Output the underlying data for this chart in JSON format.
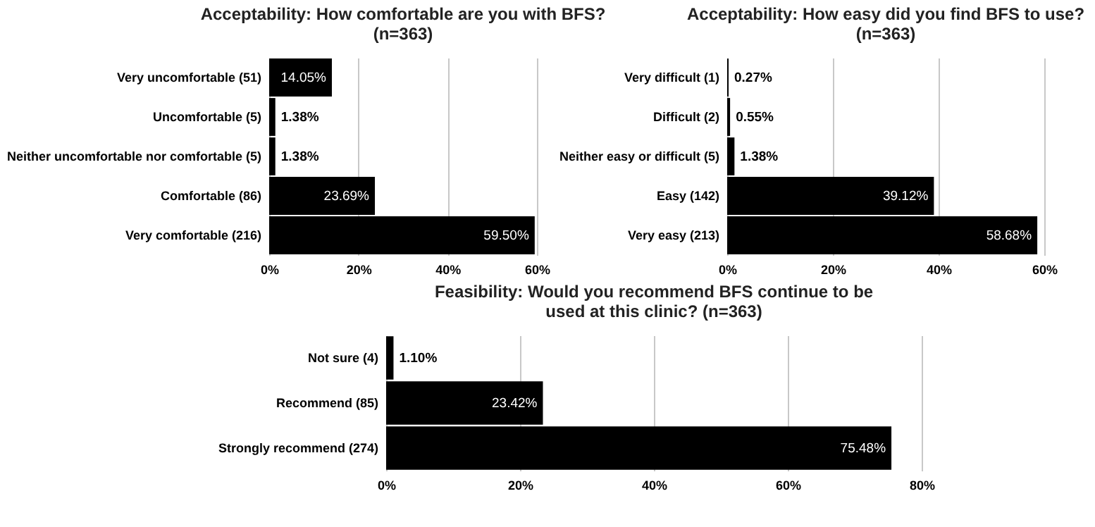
{
  "chart_data": [
    {
      "type": "bar",
      "orientation": "horizontal",
      "title": "Acceptability: How comfortable are you with BFS?\n(n=363)",
      "categories": [
        "Very uncomfortable (51)",
        "Uncomfortable (5)",
        "Neither uncomfortable nor comfortable (5)",
        "Comfortable (86)",
        "Very comfortable (216)"
      ],
      "values": [
        14.05,
        1.38,
        1.38,
        23.69,
        59.5
      ],
      "value_labels": [
        "14.05%",
        "1.38%",
        "1.38%",
        "23.69%",
        "59.50%"
      ],
      "color": "#000000",
      "xlim": [
        0,
        60
      ],
      "xticks": [
        {
          "value": 0,
          "label": "0%"
        },
        {
          "value": 20,
          "label": "20%"
        },
        {
          "value": 40,
          "label": "40%"
        },
        {
          "value": 60,
          "label": "60%"
        }
      ],
      "grid": "x"
    },
    {
      "type": "bar",
      "orientation": "horizontal",
      "title": "Acceptability: How easy did you find BFS to use?\n(n=363)",
      "categories": [
        "Very difficult (1)",
        "Difficult (2)",
        "Neither easy or difficult (5)",
        "Easy (142)",
        "Very easy (213)"
      ],
      "values": [
        0.27,
        0.55,
        1.38,
        39.12,
        58.68
      ],
      "value_labels": [
        "0.27%",
        "0.55%",
        "1.38%",
        "39.12%",
        "58.68%"
      ],
      "color": "#000000",
      "xlim": [
        0,
        60
      ],
      "xticks": [
        {
          "value": 0,
          "label": "0%"
        },
        {
          "value": 20,
          "label": "20%"
        },
        {
          "value": 40,
          "label": "40%"
        },
        {
          "value": 60,
          "label": "60%"
        }
      ],
      "grid": "x"
    },
    {
      "type": "bar",
      "orientation": "horizontal",
      "title": "Feasibility: Would you recommend BFS continue to be\nused at this clinic? (n=363)",
      "categories": [
        "Not sure (4)",
        "Recommend (85)",
        "Strongly recommend (274)"
      ],
      "values": [
        1.1,
        23.42,
        75.48
      ],
      "value_labels": [
        "1.10%",
        "23.42%",
        "75.48%"
      ],
      "color": "#000000",
      "xlim": [
        0,
        80
      ],
      "xticks": [
        {
          "value": 0,
          "label": "0%"
        },
        {
          "value": 20,
          "label": "20%"
        },
        {
          "value": 40,
          "label": "40%"
        },
        {
          "value": 60,
          "label": "60%"
        },
        {
          "value": 80,
          "label": "80%"
        }
      ],
      "grid": "x"
    }
  ]
}
